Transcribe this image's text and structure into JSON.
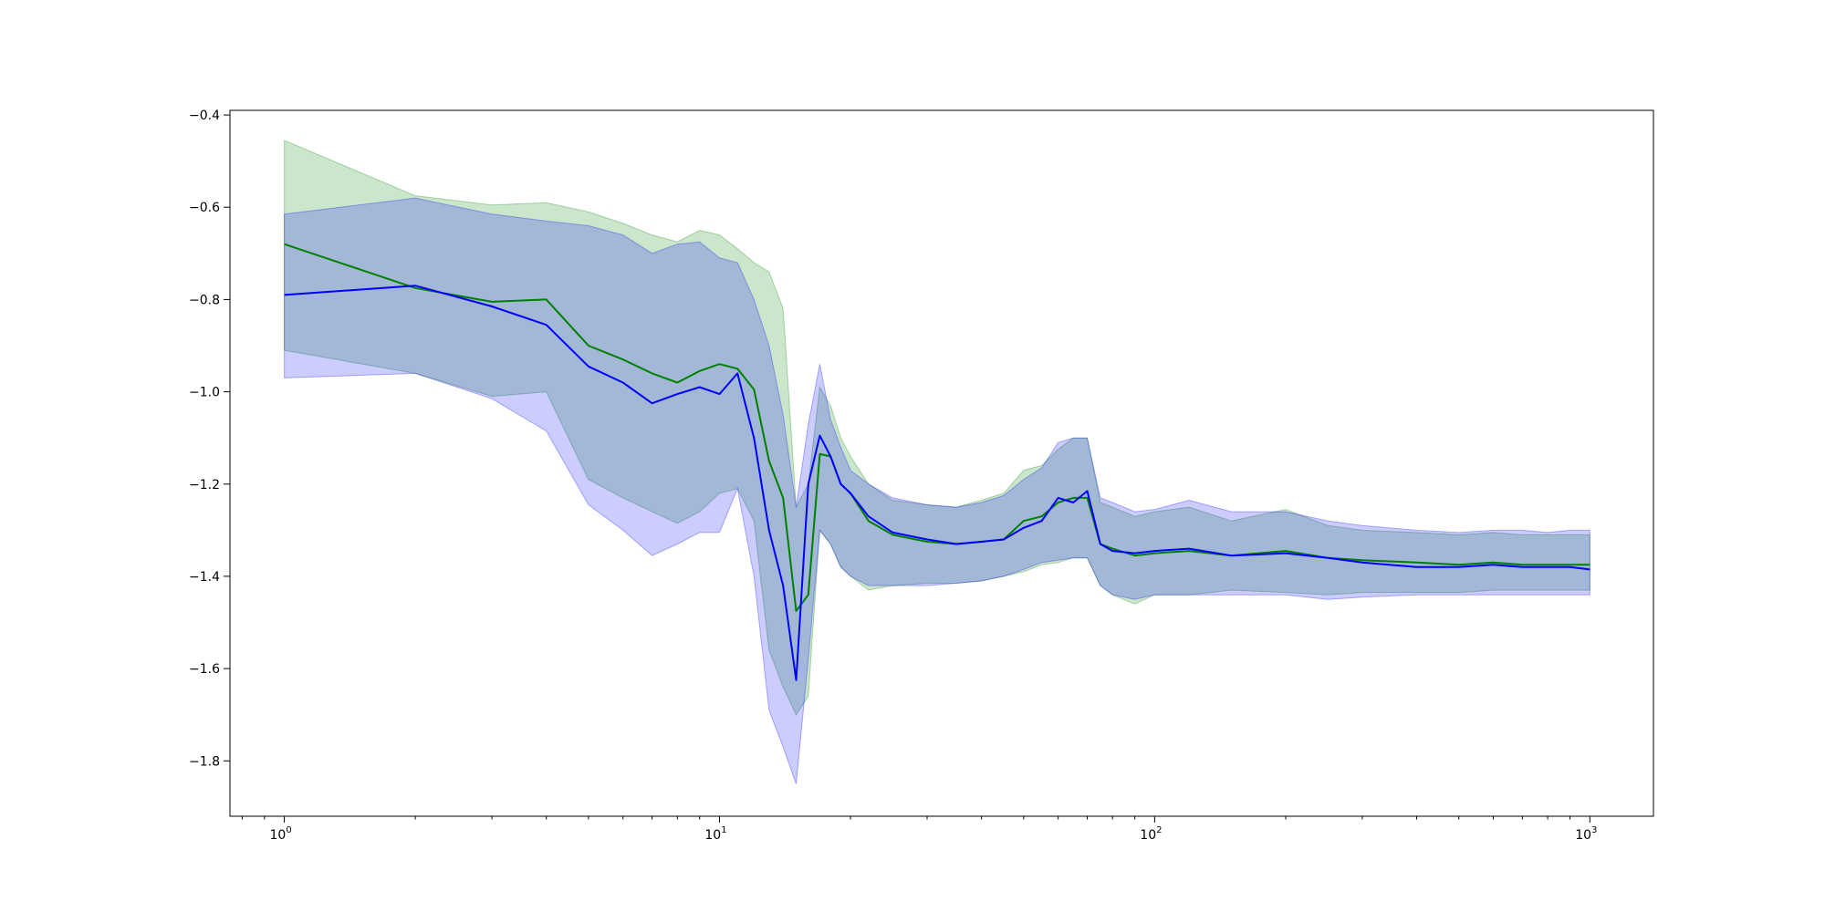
{
  "chart_data": {
    "type": "line",
    "title": "",
    "xlabel": "",
    "ylabel": "",
    "xscale": "log",
    "xlim": [
      0.75,
      1400
    ],
    "ylim": [
      -1.92,
      -0.39
    ],
    "grid": false,
    "legend": "none",
    "x_ticks": [
      {
        "value": 1,
        "base": "10",
        "exp": "0"
      },
      {
        "value": 10,
        "base": "10",
        "exp": "1"
      },
      {
        "value": 100,
        "base": "10",
        "exp": "2"
      },
      {
        "value": 1000,
        "base": "10",
        "exp": "3"
      }
    ],
    "y_ticks": [
      {
        "value": -0.4,
        "label": "−0.4"
      },
      {
        "value": -0.6,
        "label": "−0.6"
      },
      {
        "value": -0.8,
        "label": "−0.8"
      },
      {
        "value": -1.0,
        "label": "−1.0"
      },
      {
        "value": -1.2,
        "label": "−1.2"
      },
      {
        "value": -1.4,
        "label": "−1.4"
      },
      {
        "value": -1.6,
        "label": "−1.6"
      },
      {
        "value": -1.8,
        "label": "−1.8"
      }
    ],
    "series": [
      {
        "color": "#008000",
        "band_color": "#008000",
        "band_opacity": 0.2,
        "x": [
          1,
          2,
          3,
          4,
          5,
          6,
          7,
          8,
          9,
          10,
          11,
          12,
          13,
          14,
          15,
          16,
          17,
          18,
          19,
          20,
          22,
          25,
          30,
          35,
          40,
          45,
          50,
          55,
          60,
          65,
          70,
          75,
          80,
          90,
          100,
          120,
          150,
          200,
          250,
          300,
          400,
          500,
          600,
          700,
          800,
          900,
          1000
        ],
        "y": [
          -0.68,
          -0.775,
          -0.805,
          -0.8,
          -0.9,
          -0.93,
          -0.96,
          -0.98,
          -0.955,
          -0.94,
          -0.95,
          -0.995,
          -1.15,
          -1.23,
          -1.475,
          -1.44,
          -1.135,
          -1.14,
          -1.2,
          -1.22,
          -1.28,
          -1.31,
          -1.325,
          -1.33,
          -1.325,
          -1.32,
          -1.28,
          -1.27,
          -1.24,
          -1.23,
          -1.23,
          -1.33,
          -1.34,
          -1.355,
          -1.35,
          -1.345,
          -1.355,
          -1.345,
          -1.36,
          -1.365,
          -1.37,
          -1.375,
          -1.37,
          -1.375,
          -1.375,
          -1.375,
          -1.375
        ],
        "y_upper": [
          -0.455,
          -0.575,
          -0.595,
          -0.59,
          -0.61,
          -0.635,
          -0.66,
          -0.675,
          -0.65,
          -0.66,
          -0.69,
          -0.72,
          -0.74,
          -0.82,
          -1.25,
          -1.2,
          -0.99,
          -1.03,
          -1.1,
          -1.14,
          -1.2,
          -1.235,
          -1.245,
          -1.25,
          -1.235,
          -1.22,
          -1.17,
          -1.16,
          -1.125,
          -1.1,
          -1.1,
          -1.24,
          -1.25,
          -1.27,
          -1.26,
          -1.25,
          -1.28,
          -1.255,
          -1.29,
          -1.3,
          -1.305,
          -1.31,
          -1.305,
          -1.31,
          -1.31,
          -1.31,
          -1.31
        ],
        "y_lower": [
          -0.91,
          -0.96,
          -1.01,
          -1.0,
          -1.19,
          -1.23,
          -1.26,
          -1.285,
          -1.26,
          -1.22,
          -1.21,
          -1.28,
          -1.56,
          -1.64,
          -1.7,
          -1.66,
          -1.3,
          -1.33,
          -1.38,
          -1.4,
          -1.43,
          -1.42,
          -1.415,
          -1.415,
          -1.41,
          -1.4,
          -1.39,
          -1.375,
          -1.37,
          -1.36,
          -1.36,
          -1.42,
          -1.44,
          -1.46,
          -1.44,
          -1.44,
          -1.43,
          -1.435,
          -1.44,
          -1.435,
          -1.435,
          -1.435,
          -1.43,
          -1.43,
          -1.43,
          -1.43,
          -1.43
        ]
      },
      {
        "color": "#0000ff",
        "band_color": "#0000ff",
        "band_opacity": 0.2,
        "x": [
          1,
          2,
          3,
          4,
          5,
          6,
          7,
          8,
          9,
          10,
          11,
          12,
          13,
          14,
          15,
          16,
          17,
          18,
          19,
          20,
          22,
          25,
          30,
          35,
          40,
          45,
          50,
          55,
          60,
          65,
          70,
          75,
          80,
          90,
          100,
          120,
          150,
          200,
          250,
          300,
          400,
          500,
          600,
          700,
          800,
          900,
          1000
        ],
        "y": [
          -0.79,
          -0.77,
          -0.815,
          -0.855,
          -0.945,
          -0.98,
          -1.025,
          -1.005,
          -0.99,
          -1.005,
          -0.96,
          -1.1,
          -1.3,
          -1.42,
          -1.625,
          -1.2,
          -1.095,
          -1.14,
          -1.2,
          -1.22,
          -1.27,
          -1.305,
          -1.32,
          -1.33,
          -1.325,
          -1.32,
          -1.295,
          -1.28,
          -1.23,
          -1.24,
          -1.215,
          -1.33,
          -1.345,
          -1.35,
          -1.345,
          -1.34,
          -1.355,
          -1.35,
          -1.36,
          -1.37,
          -1.38,
          -1.38,
          -1.375,
          -1.38,
          -1.38,
          -1.38,
          -1.385
        ],
        "y_upper": [
          -0.615,
          -0.58,
          -0.615,
          -0.63,
          -0.64,
          -0.66,
          -0.7,
          -0.68,
          -0.675,
          -0.71,
          -0.72,
          -0.8,
          -0.9,
          -1.05,
          -1.25,
          -1.07,
          -0.94,
          -1.06,
          -1.12,
          -1.17,
          -1.2,
          -1.23,
          -1.245,
          -1.25,
          -1.24,
          -1.225,
          -1.19,
          -1.165,
          -1.11,
          -1.1,
          -1.1,
          -1.23,
          -1.24,
          -1.26,
          -1.255,
          -1.235,
          -1.26,
          -1.26,
          -1.28,
          -1.29,
          -1.3,
          -1.305,
          -1.3,
          -1.3,
          -1.305,
          -1.3,
          -1.3
        ],
        "y_lower": [
          -0.97,
          -0.96,
          -1.015,
          -1.085,
          -1.245,
          -1.3,
          -1.355,
          -1.33,
          -1.305,
          -1.305,
          -1.21,
          -1.4,
          -1.69,
          -1.77,
          -1.85,
          -1.58,
          -1.3,
          -1.33,
          -1.38,
          -1.4,
          -1.42,
          -1.42,
          -1.42,
          -1.415,
          -1.41,
          -1.4,
          -1.385,
          -1.37,
          -1.365,
          -1.36,
          -1.36,
          -1.42,
          -1.44,
          -1.45,
          -1.44,
          -1.44,
          -1.44,
          -1.44,
          -1.45,
          -1.445,
          -1.44,
          -1.44,
          -1.44,
          -1.44,
          -1.44,
          -1.44,
          -1.44
        ]
      }
    ]
  }
}
